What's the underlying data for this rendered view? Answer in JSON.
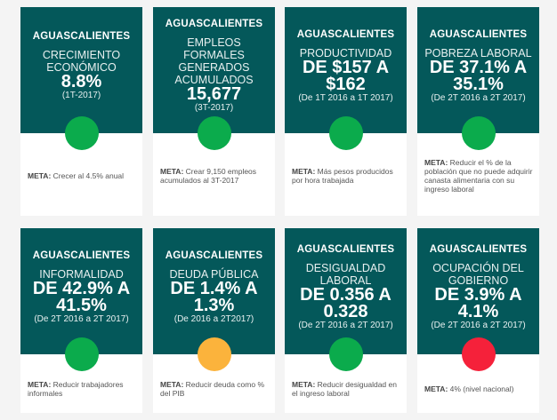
{
  "colors": {
    "teal": "#04585a",
    "green": "#0bab4c",
    "amber": "#fbb33c",
    "red": "#f5213a"
  },
  "cards": [
    {
      "region": "AGUASCALIENTES",
      "label": "CRECIMIENTO ECONÓMICO",
      "value": "8.8%",
      "period": "(1T-2017)",
      "status": "green",
      "meta_label": "META:",
      "meta": "Crecer al 4.5% anual"
    },
    {
      "region": "AGUASCALIENTES",
      "label": "EMPLEOS FORMALES GENERADOS ACUMULADOS",
      "value": "15,677",
      "period": "(3T-2017)",
      "status": "green",
      "meta_label": "META:",
      "meta": "Crear 9,150 empleos acumulados al 3T-2017"
    },
    {
      "region": "AGUASCALIENTES",
      "label": "PRODUCTIVIDAD",
      "value": "DE $157 A $162",
      "period": "(De 1T 2016 a 1T 2017)",
      "status": "green",
      "meta_label": "META:",
      "meta": "Más pesos producidos por hora trabajada"
    },
    {
      "region": "AGUASCALIENTES",
      "label": "POBREZA LABORAL",
      "value": "DE 37.1% A 35.1%",
      "period": "(De 2T 2016 a 2T 2017)",
      "status": "green",
      "meta_label": "META:",
      "meta": "Reducir el % de la población que no puede adquirir canasta alimentaria con su ingreso laboral"
    },
    {
      "region": "AGUASCALIENTES",
      "label": "INFORMALIDAD",
      "value": "DE 42.9% A 41.5%",
      "period": "(De 2T 2016 a 2T 2017)",
      "status": "green",
      "meta_label": "META:",
      "meta": "Reducir trabajadores informales"
    },
    {
      "region": "AGUASCALIENTES",
      "label": "DEUDA PÚBLICA",
      "value": "DE 1.4% A 1.3%",
      "period": "(De 2016 a 2T2017)",
      "status": "amber",
      "meta_label": "META:",
      "meta": "Reducir deuda como % del PIB"
    },
    {
      "region": "AGUASCALIENTES",
      "label": "DESIGUALDAD LABORAL",
      "value": "DE 0.356 A 0.328",
      "period": "(De 2T 2016 a 2T 2017)",
      "status": "green",
      "meta_label": "META:",
      "meta": "Reducir desigualdad en el ingreso laboral"
    },
    {
      "region": "AGUASCALIENTES",
      "label": "OCUPACIÓN DEL GOBIERNO",
      "value": "DE 3.9% A 4.1%",
      "period": "(De 2T 2016 a 2T 2017)",
      "status": "red",
      "meta_label": "META:",
      "meta": "4% (nivel nacional)"
    }
  ]
}
